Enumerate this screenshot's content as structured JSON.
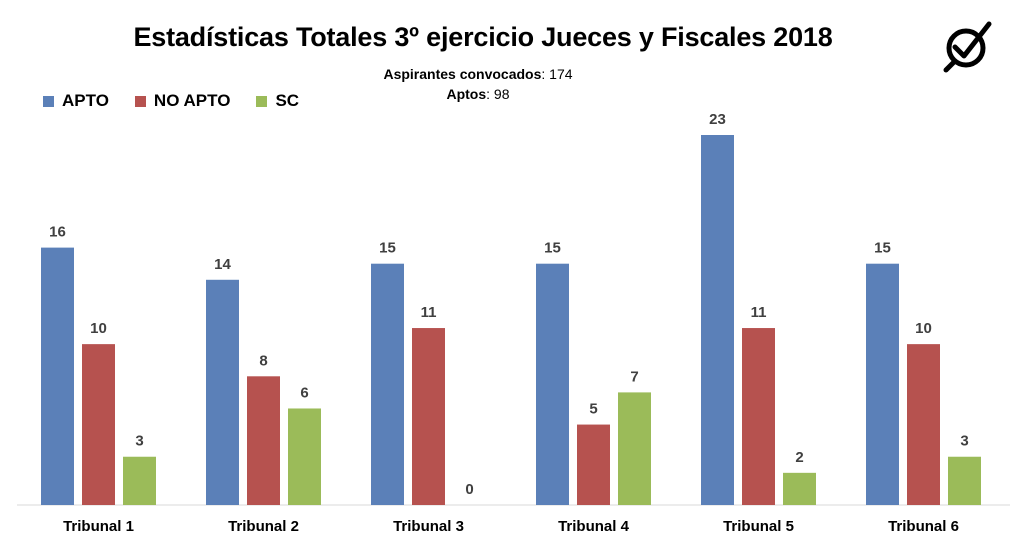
{
  "title": "Estadísticas Totales 3º ejercicio Jueces y Fiscales 2018",
  "stats": {
    "convocados_label": "Aspirantes convocados",
    "convocados_value": ": 174",
    "aptos_label": "Aptos",
    "aptos_value": ": 98"
  },
  "logo_icon": "check-magnifier-icon",
  "chart_data": {
    "type": "bar",
    "categories": [
      "Tribunal 1",
      "Tribunal 2",
      "Tribunal 3",
      "Tribunal 4",
      "Tribunal 5",
      "Tribunal 6"
    ],
    "series": [
      {
        "name": "APTO",
        "color": "#5B80B8",
        "values": [
          16,
          14,
          15,
          15,
          23,
          15
        ]
      },
      {
        "name": "NO APTO",
        "color": "#B6524F",
        "values": [
          10,
          8,
          11,
          5,
          11,
          10
        ]
      },
      {
        "name": "SC",
        "color": "#9BBB59",
        "values": [
          3,
          6,
          0,
          7,
          2,
          3
        ]
      }
    ],
    "ylim": [
      0,
      23
    ],
    "legend_position": "top-left",
    "grid": false,
    "data_labels": true
  }
}
